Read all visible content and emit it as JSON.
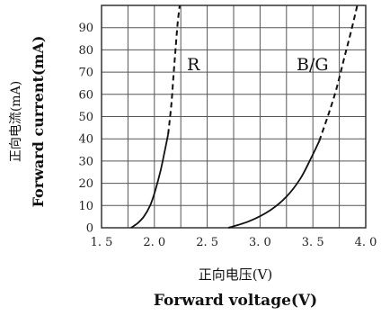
{
  "chart_data": {
    "type": "line",
    "xlabel_cn": "正向电压(V)",
    "xlabel": "Forward voltage(V)",
    "ylabel_cn": "正向电流(mA)",
    "ylabel": "Forward current(mA)",
    "xlim": [
      1.5,
      4.0
    ],
    "ylim": [
      0,
      100
    ],
    "x_ticks": [
      "1. 5",
      "2. 0",
      "2. 5",
      "3. 0",
      "3. 5",
      "4. 0"
    ],
    "y_ticks": [
      "0",
      "10",
      "20",
      "30",
      "40",
      "50",
      "60",
      "70",
      "80",
      "90"
    ],
    "grid": true,
    "series": [
      {
        "name": "R",
        "solid": [
          [
            1.78,
            0
          ],
          [
            1.84,
            2
          ],
          [
            1.9,
            5
          ],
          [
            1.96,
            10
          ],
          [
            2.01,
            17
          ],
          [
            2.06,
            26
          ],
          [
            2.1,
            35
          ],
          [
            2.13,
            42
          ]
        ],
        "dashed": [
          [
            2.13,
            42
          ],
          [
            2.16,
            55
          ],
          [
            2.18,
            68
          ],
          [
            2.2,
            80
          ],
          [
            2.22,
            92
          ],
          [
            2.24,
            100
          ]
        ]
      },
      {
        "name": "B/G",
        "solid": [
          [
            2.7,
            0
          ],
          [
            2.9,
            3
          ],
          [
            3.1,
            8
          ],
          [
            3.25,
            14
          ],
          [
            3.38,
            22
          ],
          [
            3.48,
            31
          ],
          [
            3.56,
            39
          ]
        ],
        "dashed": [
          [
            3.56,
            39
          ],
          [
            3.64,
            50
          ],
          [
            3.72,
            62
          ],
          [
            3.8,
            77
          ],
          [
            3.86,
            88
          ],
          [
            3.92,
            100
          ]
        ]
      }
    ]
  }
}
